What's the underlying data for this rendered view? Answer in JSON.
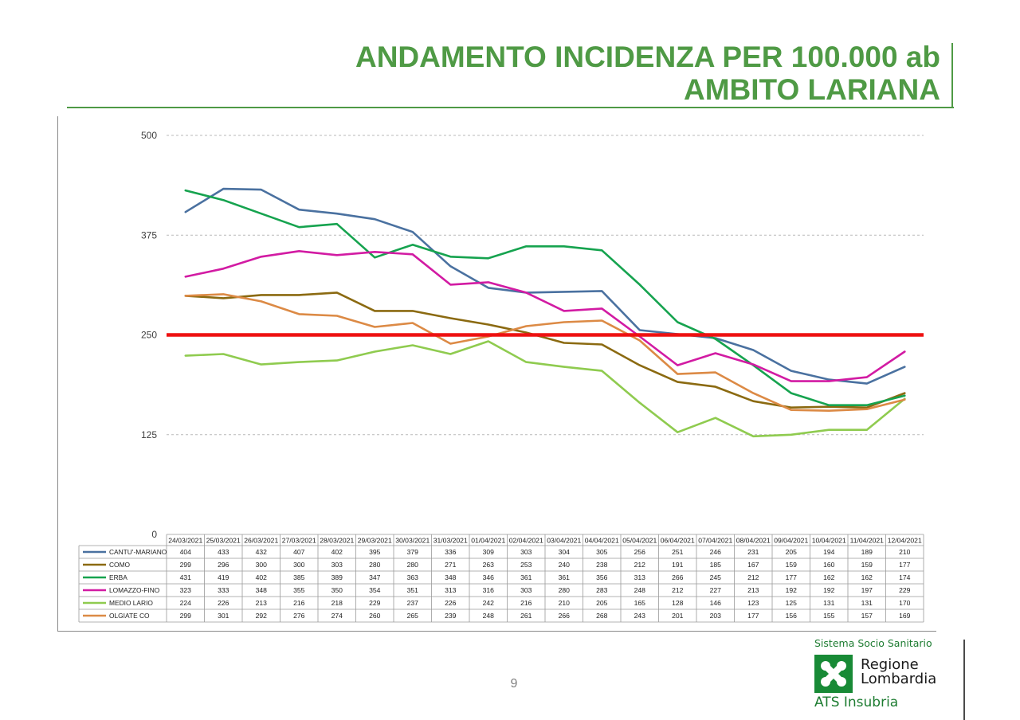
{
  "slide": {
    "title_line1": "ANDAMENTO INCIDENZA PER 100.000 ab",
    "title_line2": "AMBITO LARIANA",
    "page_number": "9"
  },
  "branding": {
    "top": "Sistema Socio Sanitario",
    "name_line1": "Regione",
    "name_line2": "Lombardia",
    "sub": "ATS Insubria",
    "color": "#1d7c31"
  },
  "chart_data": {
    "type": "line",
    "title": "",
    "xlabel": "",
    "ylabel": "",
    "ylim": [
      0,
      500
    ],
    "yticks": [
      0,
      125,
      250,
      375,
      500
    ],
    "grid": true,
    "legend": "data-table",
    "categories": [
      "24/03/2021",
      "25/03/2021",
      "26/03/2021",
      "27/03/2021",
      "28/03/2021",
      "29/03/2021",
      "30/03/2021",
      "31/03/2021",
      "01/04/2021",
      "02/04/2021",
      "03/04/2021",
      "04/04/2021",
      "05/04/2021",
      "06/04/2021",
      "07/04/2021",
      "08/04/2021",
      "09/04/2021",
      "10/04/2021",
      "11/04/2021",
      "12/04/2021"
    ],
    "series": [
      {
        "name": "CANTU'-MARIANO",
        "color": "#4a71a0",
        "values": [
          404,
          433,
          432,
          407,
          402,
          395,
          379,
          336,
          309,
          303,
          304,
          305,
          256,
          251,
          246,
          231,
          205,
          194,
          189,
          210
        ]
      },
      {
        "name": "COMO",
        "color": "#8b6a11",
        "values": [
          299,
          296,
          300,
          300,
          303,
          280,
          280,
          271,
          263,
          253,
          240,
          238,
          212,
          191,
          185,
          167,
          159,
          160,
          159,
          177
        ]
      },
      {
        "name": "ERBA",
        "color": "#16a34f",
        "values": [
          431,
          419,
          402,
          385,
          389,
          347,
          363,
          348,
          346,
          361,
          361,
          356,
          313,
          266,
          245,
          212,
          177,
          162,
          162,
          174
        ]
      },
      {
        "name": "LOMAZZO-FINO",
        "color": "#d21ba3",
        "values": [
          323,
          333,
          348,
          355,
          350,
          354,
          351,
          313,
          316,
          303,
          280,
          283,
          248,
          212,
          227,
          213,
          192,
          192,
          197,
          229
        ]
      },
      {
        "name": "MEDIO LARIO",
        "color": "#8fcb4f",
        "values": [
          224,
          226,
          213,
          216,
          218,
          229,
          237,
          226,
          242,
          216,
          210,
          205,
          165,
          128,
          146,
          123,
          125,
          131,
          131,
          170
        ]
      },
      {
        "name": "OLGIATE CO",
        "color": "#dc8a45",
        "values": [
          299,
          301,
          292,
          276,
          274,
          260,
          265,
          239,
          248,
          261,
          266,
          268,
          243,
          201,
          203,
          177,
          156,
          155,
          157,
          169
        ]
      }
    ],
    "threshold": {
      "value": 250,
      "color": "#ee1111"
    }
  }
}
